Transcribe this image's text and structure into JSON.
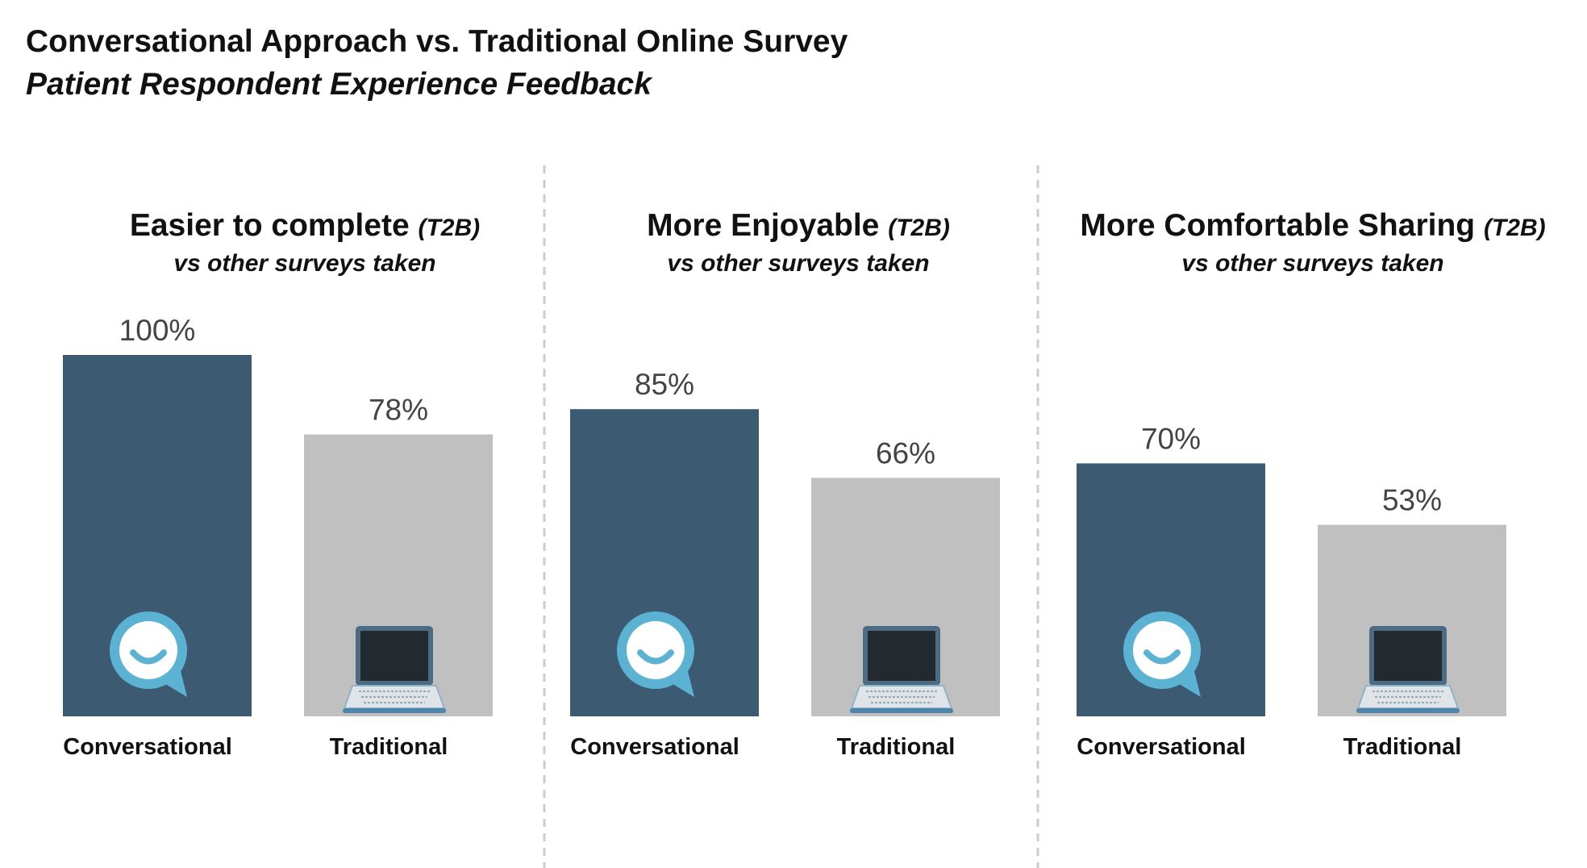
{
  "header": {
    "title": "Conversational Approach vs. Traditional Online Survey",
    "subtitle": "Patient Respondent Experience Feedback"
  },
  "colors": {
    "conversational": "#3d5a73",
    "traditional": "#c0c0c0",
    "chat_icon": "#5bb2d3",
    "divider": "#cccccc"
  },
  "icons": {
    "conversational": "chat-bubble-smile-icon",
    "traditional": "laptop-icon"
  },
  "chart_data": [
    {
      "type": "bar",
      "title": "Easier to complete",
      "title_tag": "(T2B)",
      "subtitle": "vs other surveys taken",
      "categories": [
        "Conversational",
        "Traditional"
      ],
      "values": [
        100,
        78
      ],
      "value_labels": [
        "100%",
        "78%"
      ],
      "ylim": [
        0,
        100
      ]
    },
    {
      "type": "bar",
      "title": "More Enjoyable",
      "title_tag": "(T2B)",
      "subtitle": "vs other surveys taken",
      "categories": [
        "Conversational",
        "Traditional"
      ],
      "values": [
        85,
        66
      ],
      "value_labels": [
        "85%",
        "66%"
      ],
      "ylim": [
        0,
        100
      ]
    },
    {
      "type": "bar",
      "title": "More Comfortable Sharing",
      "title_tag": "(T2B)",
      "subtitle": "vs other surveys taken",
      "categories": [
        "Conversational",
        "Traditional"
      ],
      "values": [
        70,
        53
      ],
      "value_labels": [
        "70%",
        "53%"
      ],
      "ylim": [
        0,
        100
      ]
    }
  ]
}
